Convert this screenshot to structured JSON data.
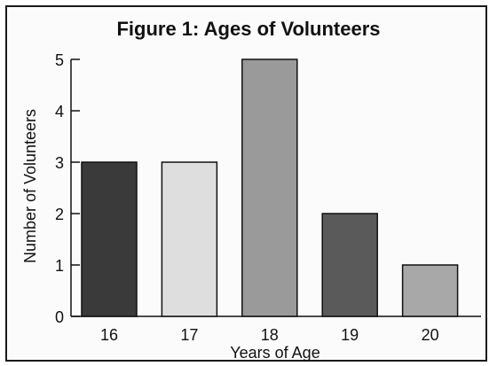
{
  "chart_data": {
    "type": "bar",
    "title": "Figure 1: Ages of Volunteers",
    "xlabel": "Years of Age",
    "ylabel": "Number of Volunteers",
    "categories": [
      "16",
      "17",
      "18",
      "19",
      "20"
    ],
    "values": [
      3,
      3,
      5,
      2,
      1
    ],
    "ylim": [
      0,
      5
    ],
    "yticks": [
      "0",
      "1",
      "2",
      "3",
      "4",
      "5"
    ],
    "bar_colors": [
      "#3a3a3a",
      "#dedede",
      "#9a9a9a",
      "#5a5a5a",
      "#a8a8a8"
    ],
    "grid": false,
    "legend": "none"
  }
}
